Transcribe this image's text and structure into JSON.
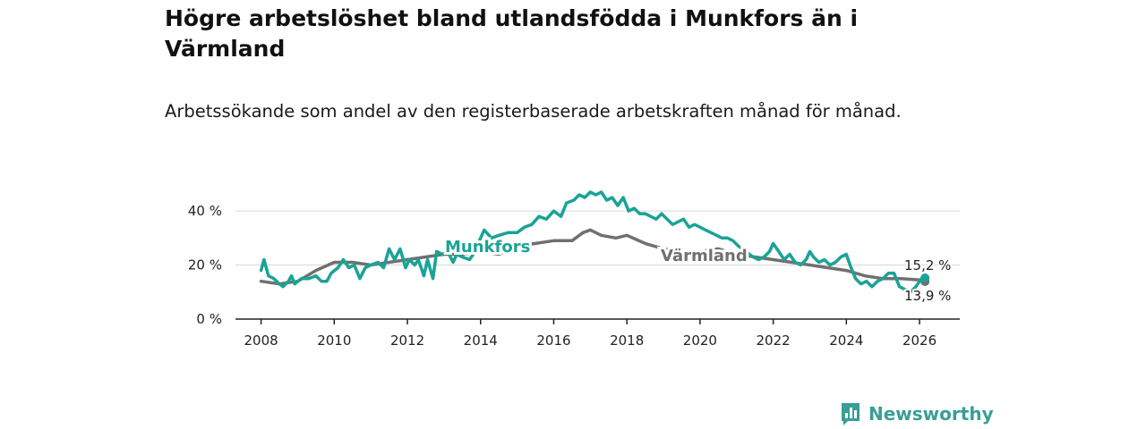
{
  "title": "Högre arbetslöshet bland utlandsfödda i Munkfors än i Värmland",
  "subtitle": "Arbetssökande som andel av den registerbaserade arbetskraften månad för månad.",
  "brand": {
    "name": "Newsworthy",
    "icon": "newsworthy-logo-icon",
    "color": "#3a9e95"
  },
  "colors": {
    "munkfors": "#1aa396",
    "varmland": "#707070",
    "grid": "#d8d8d8",
    "axis": "#222222"
  },
  "chart_data": {
    "type": "line",
    "title": "Högre arbetslöshet bland utlandsfödda i Munkfors än i Värmland",
    "xlabel": "",
    "ylabel": "",
    "xlim": [
      2007.3,
      2027.1
    ],
    "ylim": [
      0,
      44
    ],
    "yticks": [
      0,
      20,
      40
    ],
    "ytick_labels": [
      "0 %",
      "20 %",
      "40 %"
    ],
    "xticks": [
      2008,
      2010,
      2012,
      2014,
      2016,
      2018,
      2020,
      2022,
      2024,
      2026
    ],
    "xtick_labels": [
      "2008",
      "2010",
      "2012",
      "2014",
      "2016",
      "2018",
      "2020",
      "2022",
      "2024",
      "2026"
    ],
    "grid": true,
    "series": [
      {
        "name": "Munkfors",
        "label": "Munkfors",
        "end_label": "15,2 %",
        "end_value": 15.2,
        "points": [
          [
            2008.0,
            18
          ],
          [
            2008.08,
            22
          ],
          [
            2008.2,
            16
          ],
          [
            2008.35,
            15
          ],
          [
            2008.5,
            13
          ],
          [
            2008.6,
            12
          ],
          [
            2008.75,
            14
          ],
          [
            2008.83,
            16
          ],
          [
            2008.92,
            13
          ],
          [
            2009.1,
            15
          ],
          [
            2009.3,
            15
          ],
          [
            2009.5,
            16
          ],
          [
            2009.65,
            14
          ],
          [
            2009.8,
            14
          ],
          [
            2009.92,
            17
          ],
          [
            2010.1,
            19
          ],
          [
            2010.25,
            22
          ],
          [
            2010.4,
            19
          ],
          [
            2010.55,
            20
          ],
          [
            2010.7,
            15
          ],
          [
            2010.85,
            19
          ],
          [
            2011.0,
            20
          ],
          [
            2011.2,
            21
          ],
          [
            2011.35,
            19
          ],
          [
            2011.5,
            26
          ],
          [
            2011.65,
            22
          ],
          [
            2011.8,
            26
          ],
          [
            2011.95,
            19
          ],
          [
            2012.05,
            22
          ],
          [
            2012.2,
            20
          ],
          [
            2012.3,
            22
          ],
          [
            2012.45,
            16
          ],
          [
            2012.55,
            22
          ],
          [
            2012.7,
            15
          ],
          [
            2012.8,
            25
          ],
          [
            2012.95,
            24
          ],
          [
            2013.1,
            25
          ],
          [
            2013.25,
            21
          ],
          [
            2013.35,
            24
          ],
          [
            2013.5,
            23
          ],
          [
            2013.7,
            22
          ],
          [
            2013.85,
            25
          ],
          [
            2014.0,
            30
          ],
          [
            2014.1,
            33
          ],
          [
            2014.3,
            30
          ],
          [
            2014.5,
            31
          ],
          [
            2014.75,
            32
          ],
          [
            2015.0,
            32
          ],
          [
            2015.2,
            34
          ],
          [
            2015.4,
            35
          ],
          [
            2015.6,
            38
          ],
          [
            2015.8,
            37
          ],
          [
            2016.0,
            40
          ],
          [
            2016.2,
            38
          ],
          [
            2016.35,
            43
          ],
          [
            2016.55,
            44
          ],
          [
            2016.7,
            46
          ],
          [
            2016.85,
            45
          ],
          [
            2017.0,
            47
          ],
          [
            2017.15,
            46
          ],
          [
            2017.3,
            47
          ],
          [
            2017.45,
            44
          ],
          [
            2017.6,
            45
          ],
          [
            2017.75,
            42
          ],
          [
            2017.9,
            45
          ],
          [
            2018.05,
            40
          ],
          [
            2018.2,
            41
          ],
          [
            2018.35,
            39
          ],
          [
            2018.5,
            39
          ],
          [
            2018.65,
            38
          ],
          [
            2018.8,
            37
          ],
          [
            2018.95,
            39
          ],
          [
            2019.1,
            37
          ],
          [
            2019.25,
            35
          ],
          [
            2019.4,
            36
          ],
          [
            2019.55,
            37
          ],
          [
            2019.7,
            34
          ],
          [
            2019.85,
            35
          ],
          [
            2020.0,
            34
          ],
          [
            2020.15,
            33
          ],
          [
            2020.3,
            32
          ],
          [
            2020.45,
            31
          ],
          [
            2020.6,
            30
          ],
          [
            2020.75,
            30
          ],
          [
            2020.9,
            29
          ],
          [
            2021.05,
            27
          ],
          [
            2021.25,
            25
          ],
          [
            2021.45,
            23
          ],
          [
            2021.6,
            22
          ],
          [
            2021.75,
            23
          ],
          [
            2021.9,
            25
          ],
          [
            2022.0,
            28
          ],
          [
            2022.15,
            25
          ],
          [
            2022.3,
            22
          ],
          [
            2022.45,
            24
          ],
          [
            2022.6,
            21
          ],
          [
            2022.75,
            20
          ],
          [
            2022.9,
            22
          ],
          [
            2023.0,
            25
          ],
          [
            2023.1,
            23
          ],
          [
            2023.25,
            21
          ],
          [
            2023.4,
            22
          ],
          [
            2023.55,
            20
          ],
          [
            2023.7,
            21
          ],
          [
            2023.85,
            23
          ],
          [
            2024.0,
            24
          ],
          [
            2024.1,
            20
          ],
          [
            2024.25,
            15
          ],
          [
            2024.4,
            13
          ],
          [
            2024.55,
            14
          ],
          [
            2024.7,
            12
          ],
          [
            2024.85,
            14
          ],
          [
            2025.0,
            15
          ],
          [
            2025.15,
            17
          ],
          [
            2025.3,
            17
          ],
          [
            2025.45,
            12
          ],
          [
            2025.6,
            11
          ],
          [
            2025.75,
            10
          ],
          [
            2025.9,
            12
          ],
          [
            2026.05,
            15
          ],
          [
            2026.15,
            15.2
          ]
        ]
      },
      {
        "name": "Värmland",
        "label": "Värmland",
        "end_label": "13,9 %",
        "end_value": 13.9,
        "points": [
          [
            2008.0,
            14
          ],
          [
            2008.5,
            13
          ],
          [
            2009.0,
            14
          ],
          [
            2009.5,
            18
          ],
          [
            2010.0,
            21
          ],
          [
            2010.5,
            21
          ],
          [
            2011.0,
            20
          ],
          [
            2011.5,
            21
          ],
          [
            2012.0,
            22
          ],
          [
            2012.5,
            23
          ],
          [
            2013.0,
            24
          ],
          [
            2013.5,
            24
          ],
          [
            2014.0,
            25
          ],
          [
            2014.5,
            24
          ],
          [
            2015.0,
            27
          ],
          [
            2015.5,
            28
          ],
          [
            2016.0,
            29
          ],
          [
            2016.5,
            29
          ],
          [
            2016.8,
            32
          ],
          [
            2017.0,
            33
          ],
          [
            2017.3,
            31
          ],
          [
            2017.7,
            30
          ],
          [
            2018.0,
            31
          ],
          [
            2018.5,
            28
          ],
          [
            2019.0,
            26
          ],
          [
            2019.5,
            25
          ],
          [
            2020.0,
            25
          ],
          [
            2020.5,
            26
          ],
          [
            2021.0,
            24
          ],
          [
            2021.5,
            23
          ],
          [
            2022.0,
            22
          ],
          [
            2022.5,
            21
          ],
          [
            2023.0,
            20
          ],
          [
            2023.5,
            19
          ],
          [
            2024.0,
            18
          ],
          [
            2024.5,
            16
          ],
          [
            2025.0,
            15
          ],
          [
            2025.5,
            15
          ],
          [
            2026.0,
            14.5
          ],
          [
            2026.15,
            13.9
          ]
        ]
      }
    ]
  }
}
